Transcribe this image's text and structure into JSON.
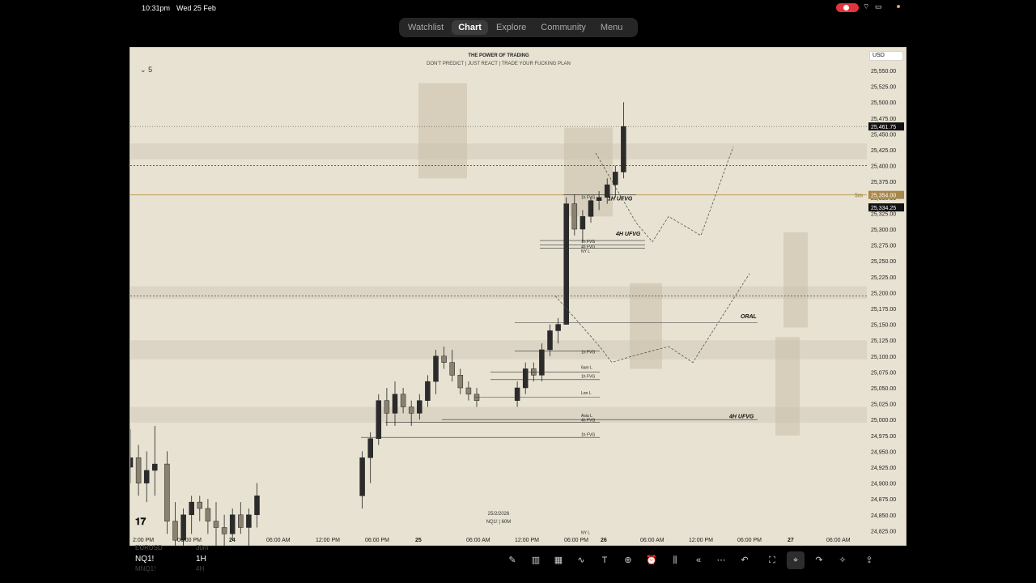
{
  "status": {
    "time": "10:31pm",
    "date": "Wed 25 Feb"
  },
  "nav": {
    "tabs": [
      "Watchlist",
      "Chart",
      "Explore",
      "Community",
      "Menu"
    ],
    "active": "Chart"
  },
  "chart": {
    "title": "THE POWER OF TRADING",
    "subtitle": "DON'T PREDICT | JUST REACT | TRADE YOUR FUCKING PLAN",
    "legend_count": "5",
    "currency": "USD",
    "date_stamp": "25/2/2026",
    "symbol_stamp": "NQ1! | 60M",
    "price_labels": [
      "25,550.00",
      "25,525.00",
      "25,500.00",
      "25,475.00",
      "25,450.00",
      "25,425.00",
      "25,400.00",
      "25,375.00",
      "25,350.00",
      "25,325.00",
      "25,300.00",
      "25,275.00",
      "25,250.00",
      "25,225.00",
      "25,200.00",
      "25,175.00",
      "25,150.00",
      "25,125.00",
      "25,100.00",
      "25,075.00",
      "25,050.00",
      "25,025.00",
      "25,000.00",
      "24,975.00",
      "24,950.00",
      "24,925.00",
      "24,900.00",
      "24,875.00",
      "24,850.00",
      "24,825.00"
    ],
    "price_tags": [
      {
        "text": "25,461.75",
        "price": 25461.75,
        "style": "dark"
      },
      {
        "text": "25,354.00",
        "price": 25354,
        "style": "gold"
      },
      {
        "text": "25,334.25",
        "price": 25334.25,
        "style": "dark"
      }
    ],
    "countdown": "5m",
    "time_labels": [
      "2:00 PM",
      "06:00 PM",
      "24",
      "06:00 AM",
      "12:00 PM",
      "06:00 PM",
      "25",
      "06:00 AM",
      "12:00 PM",
      "06:00 PM",
      "26",
      "06:00 AM",
      "12:00 PM",
      "06:00 PM",
      "27",
      "06:00 AM"
    ],
    "annotations": {
      "big": [
        "1H UFVG",
        "4H UFVG",
        "ORAL",
        "4H UFVG"
      ],
      "small": [
        "1h FVG",
        "1h FVG",
        "4h FVG",
        "NY L",
        "1h FVG",
        "6am L",
        "1h FVG",
        "Lon L",
        "Asia L",
        "4h FVG",
        "1h FVG",
        "NY L"
      ]
    }
  },
  "bottom": {
    "symbol": "NQ1!",
    "timeframe": "1H",
    "ghost_above_symbol": "EURUSD",
    "ghost_below_symbol": "MNQ1!",
    "ghost_above_tf": "30m",
    "ghost_below_tf": "4H",
    "tools": [
      "pencil-icon",
      "chart-type-icon",
      "grid-icon",
      "indicators-icon",
      "tradingview-icon",
      "add-icon",
      "alarm-icon",
      "replay-icon",
      "rewind-icon",
      "more-icon",
      "undo-icon",
      "fullscreen-icon",
      "crosshair-icon",
      "redo-icon",
      "idea-icon",
      "share-icon"
    ]
  }
}
